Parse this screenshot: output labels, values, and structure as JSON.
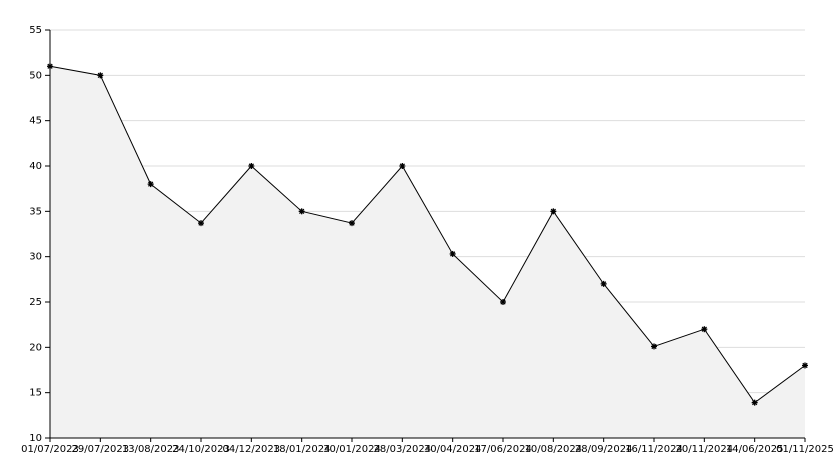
{
  "chart_data": {
    "type": "line",
    "categories": [
      "01/07/2023",
      "29/07/2023",
      "13/08/2023",
      "24/10/2023",
      "04/12/2023",
      "18/01/2024",
      "30/01/2024",
      "28/03/2024",
      "30/04/2024",
      "17/06/2024",
      "10/08/2024",
      "28/09/2024",
      "16/11/2024",
      "20/11/2024",
      "14/06/2025",
      "01/11/2025"
    ],
    "values": [
      51,
      50,
      38,
      33.7,
      40,
      35,
      33.7,
      40,
      30.3,
      25,
      35,
      27,
      20.1,
      22,
      13.9,
      18
    ],
    "color": "#000000",
    "fill": "#f2f2f2",
    "ylim": [
      10,
      55
    ],
    "yticks": [
      10,
      15,
      20,
      25,
      30,
      35,
      40,
      45,
      50,
      55
    ],
    "grid": true
  }
}
